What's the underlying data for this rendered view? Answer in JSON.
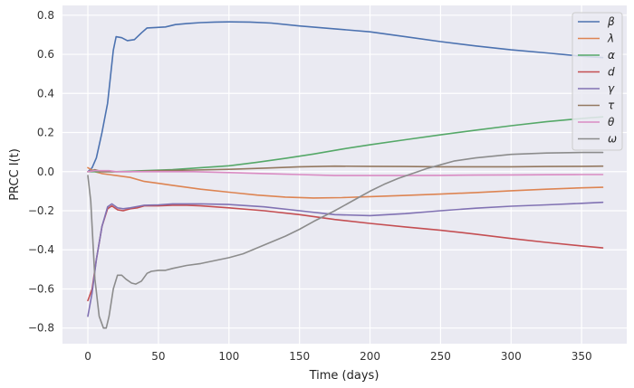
{
  "chart_data": {
    "type": "line",
    "title": "",
    "xlabel": "Time (days)",
    "ylabel": "PRCC I(t)",
    "xlim": [
      -18,
      382
    ],
    "ylim": [
      -0.88,
      0.85
    ],
    "xticks": [
      0,
      50,
      100,
      150,
      200,
      250,
      300,
      350
    ],
    "yticks": [
      -0.8,
      -0.6,
      -0.4,
      -0.2,
      0.0,
      0.2,
      0.4,
      0.6,
      0.8
    ],
    "xtick_labels": [
      "0",
      "50",
      "100",
      "150",
      "200",
      "250",
      "300",
      "350"
    ],
    "ytick_labels": [
      "−0.8",
      "−0.6",
      "−0.4",
      "−0.2",
      "0.0",
      "0.2",
      "0.4",
      "0.6",
      "0.8"
    ],
    "grid": true,
    "background": "#eaeaf2",
    "legend_position": "top-right",
    "series": [
      {
        "name": "β",
        "color": "#4c72b0",
        "x": [
          0,
          3,
          6,
          10,
          14,
          18,
          20,
          24,
          28,
          33,
          38,
          42,
          48,
          55,
          62,
          70,
          80,
          90,
          100,
          115,
          130,
          150,
          175,
          200,
          225,
          250,
          275,
          300,
          325,
          350,
          365
        ],
        "y": [
          0.0,
          0.02,
          0.07,
          0.2,
          0.35,
          0.62,
          0.69,
          0.685,
          0.67,
          0.675,
          0.71,
          0.735,
          0.737,
          0.74,
          0.752,
          0.757,
          0.762,
          0.765,
          0.766,
          0.765,
          0.76,
          0.745,
          0.73,
          0.715,
          0.69,
          0.665,
          0.643,
          0.623,
          0.607,
          0.59,
          0.583
        ]
      },
      {
        "name": "λ",
        "color": "#dd8452",
        "x": [
          0,
          5,
          10,
          15,
          20,
          30,
          40,
          50,
          60,
          80,
          100,
          120,
          140,
          160,
          180,
          200,
          225,
          250,
          275,
          300,
          325,
          350,
          365
        ],
        "y": [
          0.02,
          0.0,
          -0.01,
          -0.015,
          -0.02,
          -0.03,
          -0.05,
          -0.06,
          -0.07,
          -0.09,
          -0.105,
          -0.12,
          -0.13,
          -0.135,
          -0.133,
          -0.128,
          -0.122,
          -0.115,
          -0.107,
          -0.098,
          -0.09,
          -0.083,
          -0.08
        ]
      },
      {
        "name": "α",
        "color": "#55a868",
        "x": [
          0,
          10,
          20,
          30,
          40,
          60,
          80,
          100,
          120,
          140,
          160,
          180,
          200,
          225,
          250,
          275,
          300,
          325,
          350,
          365
        ],
        "y": [
          0.0,
          0.0,
          0.0,
          0.002,
          0.005,
          0.01,
          0.02,
          0.03,
          0.048,
          0.068,
          0.09,
          0.115,
          0.137,
          0.163,
          0.188,
          0.212,
          0.235,
          0.255,
          0.272,
          0.28
        ]
      },
      {
        "name": "d",
        "color": "#c44e52",
        "x": [
          0,
          3,
          6,
          10,
          14,
          17,
          21,
          25,
          30,
          35,
          40,
          50,
          60,
          70,
          80,
          100,
          125,
          150,
          175,
          200,
          225,
          250,
          275,
          300,
          325,
          350,
          365
        ],
        "y": [
          -0.66,
          -0.6,
          -0.45,
          -0.28,
          -0.19,
          -0.175,
          -0.195,
          -0.2,
          -0.19,
          -0.185,
          -0.175,
          -0.175,
          -0.172,
          -0.172,
          -0.175,
          -0.185,
          -0.2,
          -0.22,
          -0.245,
          -0.265,
          -0.283,
          -0.3,
          -0.32,
          -0.342,
          -0.362,
          -0.38,
          -0.39
        ]
      },
      {
        "name": "γ",
        "color": "#8172b3",
        "x": [
          0,
          3,
          6,
          10,
          14,
          17,
          21,
          25,
          30,
          40,
          50,
          60,
          70,
          80,
          100,
          125,
          150,
          175,
          200,
          225,
          250,
          275,
          300,
          325,
          350,
          365
        ],
        "y": [
          -0.74,
          -0.62,
          -0.45,
          -0.28,
          -0.18,
          -0.165,
          -0.185,
          -0.19,
          -0.185,
          -0.172,
          -0.17,
          -0.165,
          -0.165,
          -0.165,
          -0.168,
          -0.18,
          -0.2,
          -0.22,
          -0.225,
          -0.215,
          -0.2,
          -0.187,
          -0.177,
          -0.17,
          -0.162,
          -0.157
        ]
      },
      {
        "name": "τ",
        "color": "#937860",
        "x": [
          0,
          5,
          10,
          20,
          30,
          50,
          75,
          100,
          125,
          150,
          175,
          200,
          225,
          250,
          275,
          300,
          325,
          350,
          365
        ],
        "y": [
          0.0,
          0.01,
          0.0,
          0.0,
          0.0,
          0.005,
          0.008,
          0.012,
          0.018,
          0.025,
          0.028,
          0.027,
          0.026,
          0.025,
          0.025,
          0.025,
          0.026,
          0.027,
          0.028
        ]
      },
      {
        "name": "θ",
        "color": "#da8bc3",
        "x": [
          0,
          5,
          10,
          15,
          20,
          30,
          50,
          75,
          100,
          125,
          150,
          175,
          200,
          225,
          250,
          275,
          300,
          325,
          350,
          365
        ],
        "y": [
          0.0,
          0.005,
          0.005,
          0.005,
          0.0,
          0.0,
          0.0,
          0.0,
          -0.005,
          -0.01,
          -0.015,
          -0.02,
          -0.02,
          -0.02,
          -0.019,
          -0.018,
          -0.017,
          -0.016,
          -0.015,
          -0.015
        ]
      },
      {
        "name": "ω",
        "color": "#8c8c8c",
        "x": [
          0,
          2,
          5,
          8,
          11,
          13,
          15,
          18,
          21,
          24,
          27,
          31,
          34,
          38,
          42,
          45,
          50,
          55,
          60,
          70,
          80,
          90,
          100,
          110,
          120,
          130,
          140,
          150,
          160,
          175,
          190,
          200,
          210,
          220,
          230,
          240,
          250,
          260,
          275,
          300,
          325,
          350,
          365
        ],
        "y": [
          -0.02,
          -0.15,
          -0.55,
          -0.74,
          -0.8,
          -0.8,
          -0.74,
          -0.6,
          -0.53,
          -0.53,
          -0.55,
          -0.57,
          -0.575,
          -0.56,
          -0.52,
          -0.51,
          -0.505,
          -0.505,
          -0.495,
          -0.48,
          -0.47,
          -0.455,
          -0.44,
          -0.42,
          -0.39,
          -0.36,
          -0.33,
          -0.295,
          -0.255,
          -0.2,
          -0.14,
          -0.1,
          -0.065,
          -0.035,
          -0.01,
          0.015,
          0.035,
          0.055,
          0.07,
          0.088,
          0.095,
          0.098,
          0.098
        ]
      }
    ]
  }
}
